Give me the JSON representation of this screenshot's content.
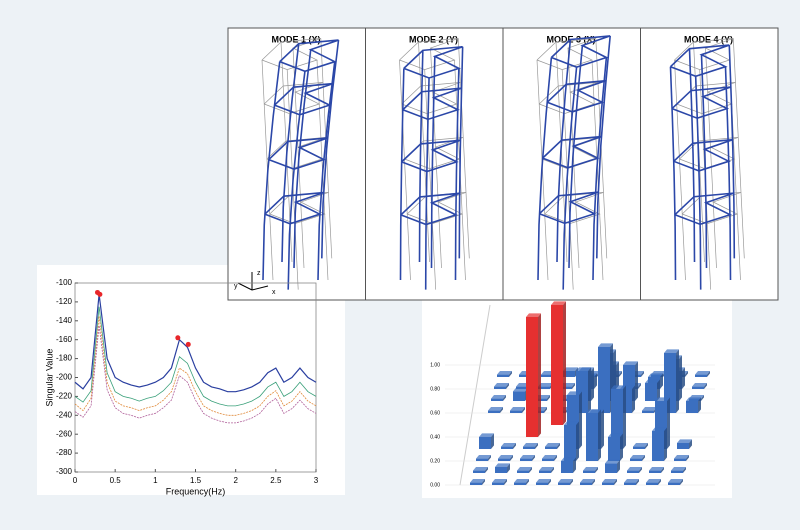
{
  "modes": [
    "MODE 1 (X)",
    "MODE 2 (Y)",
    "MODE 3 (X)",
    "MODE 4 (Y)"
  ],
  "triad": [
    "z",
    "y",
    "x"
  ],
  "chart_data": [
    {
      "type": "line",
      "xlabel": "Frequency(Hz)",
      "ylabel": "Singular Value",
      "x": [
        0,
        0.1,
        0.2,
        0.3,
        0.4,
        0.5,
        0.6,
        0.7,
        0.8,
        0.9,
        1.0,
        1.1,
        1.2,
        1.3,
        1.4,
        1.5,
        1.6,
        1.7,
        1.8,
        1.9,
        2.0,
        2.1,
        2.2,
        2.3,
        2.4,
        2.5,
        2.6,
        2.7,
        2.8,
        2.9,
        3.0
      ],
      "series": [
        {
          "color": "#2a3fa0",
          "values": [
            -205,
            -212,
            -200,
            -112,
            -180,
            -200,
            -205,
            -208,
            -210,
            -208,
            -205,
            -200,
            -190,
            -160,
            -168,
            -190,
            -205,
            -210,
            -212,
            -215,
            -215,
            -213,
            -210,
            -205,
            -195,
            -190,
            -205,
            -200,
            -190,
            -200,
            -205
          ]
        },
        {
          "color": "#3aa07a",
          "values": [
            -220,
            -226,
            -214,
            -125,
            -195,
            -215,
            -220,
            -222,
            -225,
            -222,
            -220,
            -214,
            -205,
            -178,
            -185,
            -205,
            -220,
            -225,
            -228,
            -230,
            -230,
            -228,
            -225,
            -220,
            -210,
            -205,
            -220,
            -215,
            -205,
            -215,
            -220
          ]
        },
        {
          "color": "#e08a3a",
          "values": [
            -228,
            -235,
            -222,
            -135,
            -205,
            -225,
            -230,
            -232,
            -235,
            -232,
            -230,
            -224,
            -215,
            -190,
            -196,
            -215,
            -230,
            -235,
            -238,
            -240,
            -240,
            -238,
            -235,
            -230,
            -220,
            -214,
            -230,
            -225,
            -215,
            -225,
            -230
          ]
        },
        {
          "color": "#b0609a",
          "values": [
            -236,
            -242,
            -230,
            -145,
            -213,
            -232,
            -238,
            -240,
            -243,
            -240,
            -238,
            -232,
            -224,
            -198,
            -205,
            -224,
            -238,
            -243,
            -246,
            -248,
            -248,
            -246,
            -243,
            -238,
            -228,
            -222,
            -238,
            -233,
            -224,
            -233,
            -238
          ]
        }
      ],
      "peaks": {
        "color": "#e8262a",
        "x": [
          0.28,
          0.31,
          1.28,
          1.41
        ],
        "values": [
          -110,
          -112,
          -158,
          -165
        ]
      },
      "xlim": [
        0,
        3
      ],
      "ylim": [
        -300,
        -100
      ],
      "xticks": [
        0,
        0.5,
        1,
        1.5,
        2,
        2.5,
        3
      ],
      "yticks": [
        -300,
        -280,
        -260,
        -240,
        -220,
        -200,
        -180,
        -160,
        -140,
        -120,
        -100
      ]
    },
    {
      "type": "bar3d",
      "categories": [
        null,
        null,
        null,
        null,
        null,
        null,
        null,
        null,
        null,
        null
      ],
      "series": [
        {
          "color": "#3b6fc0",
          "values": [
            0.02,
            0.02,
            0.02,
            0.02,
            0.02,
            0.02,
            0.02,
            0.02,
            0.02,
            0.02
          ]
        },
        {
          "color": "#3b6fc0",
          "values": [
            0.02,
            0.05,
            0.02,
            0.02,
            0.1,
            0.02,
            0.08,
            0.02,
            0.02,
            0.02
          ]
        },
        {
          "color": "#3b6fc0",
          "values": [
            0.02,
            0.02,
            0.02,
            0.02,
            0.3,
            0.4,
            0.2,
            0.02,
            0.25,
            0.02
          ]
        },
        {
          "color": "#3b6fc0",
          "values": [
            0.1,
            0.02,
            0.02,
            0.02,
            0.45,
            0.3,
            0.5,
            0.02,
            0.4,
            0.05
          ]
        },
        {
          "color": "#e63030",
          "values": [
            null,
            null,
            1.0,
            null,
            null,
            null,
            null,
            null,
            null,
            null
          ]
        },
        {
          "color": "#e63030",
          "values": [
            null,
            null,
            null,
            1.0,
            null,
            null,
            null,
            null,
            null,
            null
          ]
        },
        {
          "color": "#3b6fc0",
          "values": [
            0.02,
            0.02,
            0.02,
            0.02,
            0.35,
            0.55,
            0.2,
            0.02,
            0.5,
            0.1
          ]
        },
        {
          "color": "#3b6fc0",
          "values": [
            0.02,
            0.08,
            0.02,
            0.02,
            0.25,
            0.4,
            0.3,
            0.15,
            0.35,
            0.02
          ]
        },
        {
          "color": "#3b6fc0",
          "values": [
            0.02,
            0.02,
            0.02,
            0.02,
            0.1,
            0.2,
            0.02,
            0.1,
            0.15,
            0.02
          ]
        },
        {
          "color": "#3b6fc0",
          "values": [
            0.02,
            0.02,
            0.02,
            0.05,
            0.02,
            0.02,
            0.02,
            0.02,
            0.02,
            0.02
          ]
        }
      ],
      "ylim": [
        0,
        1
      ],
      "yticks": [
        {
          "value": 0,
          "label": "0.00"
        },
        {
          "value": 0.2,
          "label": "0.20"
        },
        {
          "value": 0.4,
          "label": "0.40"
        },
        {
          "value": 0.6,
          "label": "0.60"
        },
        {
          "value": 0.8,
          "label": "0.80"
        },
        {
          "value": 1,
          "label": "1.00"
        }
      ],
      "grid": true
    }
  ]
}
